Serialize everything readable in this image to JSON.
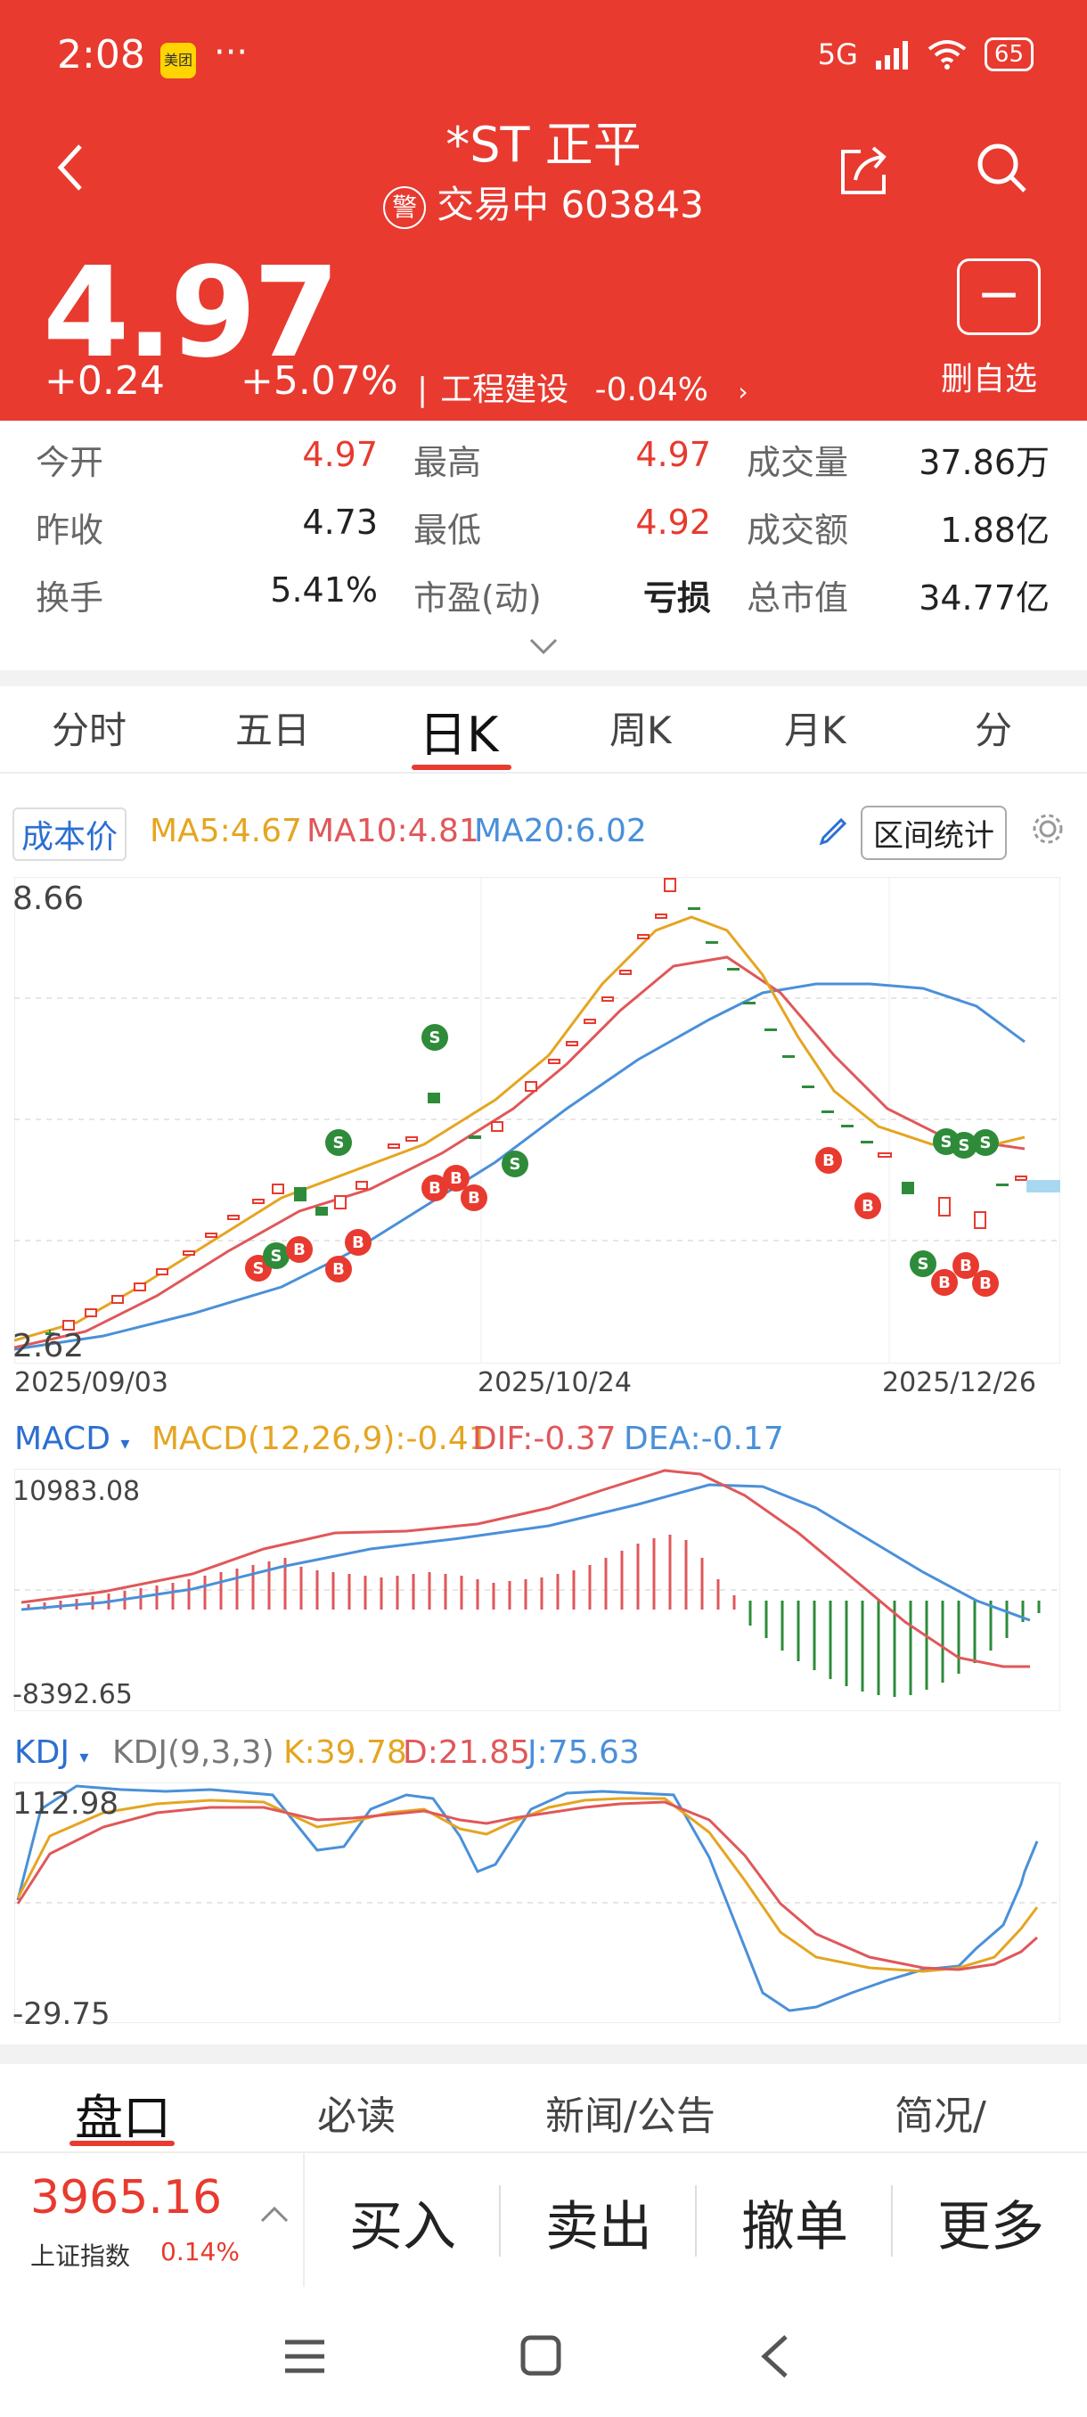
{
  "status": {
    "time": "2:08",
    "app_badge": "美团",
    "dots": "···",
    "network": "5G",
    "battery": "65"
  },
  "header": {
    "title": "*ST 正平",
    "warn_glyph": "警",
    "status_code": "交易中 603843",
    "price": "4.97",
    "change": "+0.24",
    "change_pct": "+5.07%",
    "sector": "工程建设",
    "sector_pct": "-0.04%",
    "watch_label": "删自选"
  },
  "quote": {
    "open_label": "今开",
    "open": "4.97",
    "high_label": "最高",
    "high": "4.97",
    "vol_label": "成交量",
    "vol": "37.86万",
    "prev_label": "昨收",
    "prev": "4.73",
    "low_label": "最低",
    "low": "4.92",
    "amt_label": "成交额",
    "amt": "1.88亿",
    "turn_label": "换手",
    "turn": "5.41%",
    "pe_label": "市盈(动)",
    "pe": "亏损",
    "mcap_label": "总市值",
    "mcap": "34.77亿"
  },
  "tabs": [
    "分时",
    "五日",
    "日K",
    "周K",
    "月K",
    "分"
  ],
  "kline": {
    "cost_label": "成本价",
    "ma5": "MA5:4.67",
    "ma10": "MA10:4.81",
    "ma20": "MA20:6.02",
    "range_button": "区间统计",
    "ymax": "8.66",
    "ymin": "2.62",
    "dates": [
      "2025/09/03",
      "2025/10/24",
      "2025/12/26"
    ]
  },
  "macd": {
    "label": "MACD",
    "params": "MACD(12,26,9):-0.41",
    "dif": "DIF:-0.37",
    "dea": "DEA:-0.17",
    "ymax": "10983.08",
    "ymin": "-8392.65"
  },
  "kdj": {
    "label": "KDJ",
    "params": "KDJ(9,3,3)",
    "k": "K:39.78",
    "d": "D:21.85",
    "j": "J:75.63",
    "ymax": "112.98",
    "ymin": "-29.75"
  },
  "bottom_tabs": [
    "盘口",
    "必读",
    "新闻/公告",
    "简况/"
  ],
  "index": {
    "value": "3965.16",
    "name": "上证指数",
    "pct": "0.14%"
  },
  "trade_buttons": [
    "买入",
    "卖出",
    "撤单",
    "更多"
  ],
  "colors": {
    "brand_red": "#e83a2f",
    "ma5": "#e5a521",
    "ma10": "#e0575a",
    "ma20": "#4a90d9",
    "down_green": "#2e8b3a"
  },
  "icons": [
    "back-arrow-icon",
    "share-icon",
    "search-icon",
    "minus-icon",
    "chevron-down-icon",
    "pencil-icon",
    "gear-icon",
    "menu-icon",
    "home-icon",
    "nav-back-icon"
  ]
}
